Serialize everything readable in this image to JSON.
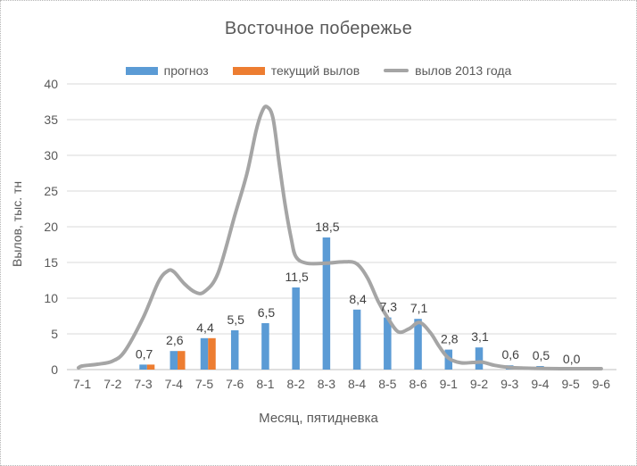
{
  "chart_data": {
    "type": "bar+line",
    "title": "Восточное побережье",
    "xlabel": "Месяц, пятидневка",
    "ylabel": "Вылов, тыс. тн",
    "ylim": [
      0,
      40
    ],
    "yticks": [
      0,
      5,
      10,
      15,
      20,
      25,
      30,
      35,
      40
    ],
    "grid": true,
    "legend_position": "top",
    "decimal_separator": ",",
    "categories": [
      "7-1",
      "7-2",
      "7-3",
      "7-4",
      "7-5",
      "7-6",
      "8-1",
      "8-2",
      "8-3",
      "8-4",
      "8-5",
      "8-6",
      "9-1",
      "9-2",
      "9-3",
      "9-4",
      "9-5",
      "9-6"
    ],
    "series": [
      {
        "name": "прогноз",
        "type": "bar",
        "color": "#5B9BD5",
        "values": [
          null,
          null,
          0.7,
          2.6,
          4.4,
          5.5,
          6.5,
          11.5,
          18.5,
          8.4,
          7.3,
          7.1,
          2.8,
          3.1,
          0.6,
          0.5,
          0.0,
          null
        ],
        "labels": [
          null,
          null,
          "0,7",
          "2,6",
          "4,4",
          "5,5",
          "6,5",
          "11,5",
          "18,5",
          "8,4",
          "7,3",
          "7,1",
          "2,8",
          "3,1",
          "0,6",
          "0,5",
          "0,0",
          null
        ]
      },
      {
        "name": "текущий вылов",
        "type": "bar",
        "color": "#ED7D31",
        "values": [
          null,
          null,
          0.7,
          2.6,
          4.4,
          null,
          null,
          null,
          null,
          null,
          null,
          null,
          null,
          null,
          null,
          null,
          null,
          null
        ]
      },
      {
        "name": "вылов 2013 года",
        "type": "line",
        "color": "#A5A5A5",
        "smooth": true,
        "values": [
          0.5,
          1.2,
          7.3,
          13.8,
          10.9,
          21.6,
          36.8,
          15.8,
          14.9,
          14.8,
          7.5,
          6.5,
          1.6,
          1.0,
          0.3,
          0.2,
          0.15,
          0.1
        ],
        "path_samples": [
          [
            -0.12,
            0.25
          ],
          [
            0,
            0.5
          ],
          [
            0.5,
            0.75
          ],
          [
            1,
            1.2
          ],
          [
            1.4,
            2.6
          ],
          [
            2,
            7.3
          ],
          [
            2.5,
            12.3
          ],
          [
            2.8,
            13.8
          ],
          [
            3,
            13.7
          ],
          [
            3.35,
            12.0
          ],
          [
            3.7,
            10.85
          ],
          [
            4,
            10.9
          ],
          [
            4.45,
            13.5
          ],
          [
            5,
            21.6
          ],
          [
            5.4,
            27.5
          ],
          [
            5.7,
            33.5
          ],
          [
            5.9,
            36.2
          ],
          [
            6.05,
            36.8
          ],
          [
            6.25,
            35.2
          ],
          [
            6.45,
            29.0
          ],
          [
            6.65,
            23.0
          ],
          [
            6.85,
            18.3
          ],
          [
            7,
            15.8
          ],
          [
            7.35,
            14.9
          ],
          [
            8,
            14.9
          ],
          [
            8.6,
            15.1
          ],
          [
            9,
            14.8
          ],
          [
            9.35,
            12.8
          ],
          [
            9.7,
            9.5
          ],
          [
            10,
            7.3
          ],
          [
            10.35,
            5.3
          ],
          [
            10.7,
            5.7
          ],
          [
            11.05,
            6.6
          ],
          [
            11.4,
            5.2
          ],
          [
            11.7,
            3.2
          ],
          [
            12,
            1.6
          ],
          [
            12.4,
            0.95
          ],
          [
            12.8,
            1.0
          ],
          [
            13.1,
            1.05
          ],
          [
            13.5,
            0.6
          ],
          [
            14,
            0.3
          ],
          [
            14.5,
            0.2
          ],
          [
            15,
            0.15
          ],
          [
            16,
            0.12
          ],
          [
            17,
            0.12
          ]
        ]
      }
    ]
  },
  "colors": {
    "text": "#595959",
    "data_label": "#404040",
    "gridline": "#D9D9D9",
    "axis_line": "#BFBFBF",
    "background": "#FFFFFF",
    "border": "#B5B5B5"
  }
}
